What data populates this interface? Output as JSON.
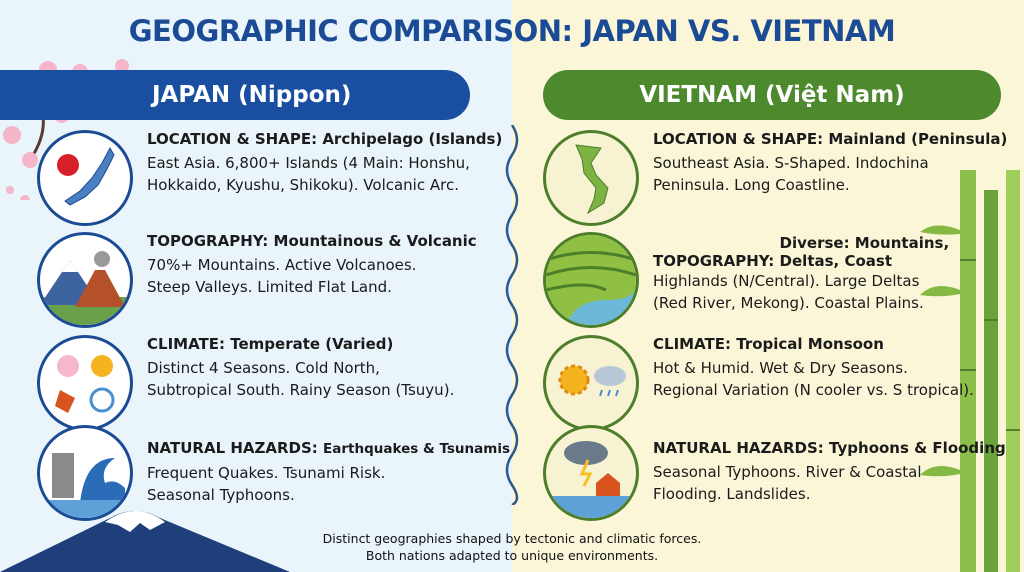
{
  "title": "GEOGRAPHIC COMPARISON: JAPAN VS. VIETNAM",
  "japan": {
    "header": "JAPAN (Nippon)",
    "color": "#1a4ea1",
    "rows": [
      {
        "key": "LOCATION & SHAPE:",
        "value": "Archipelago (Islands)",
        "body": [
          "East Asia. 6,800+ Islands (4 Main: Honshu,",
          "Hokkaido, Kyushu, Shikoku). Volcanic Arc."
        ],
        "icon": "japan-map-icon"
      },
      {
        "key": "TOPOGRAPHY:",
        "value": "Mountainous & Volcanic",
        "body": [
          "70%+ Mountains. Active Volcanoes.",
          "Steep Valleys. Limited Flat Land."
        ],
        "icon": "volcano-mountain-icon"
      },
      {
        "key": "CLIMATE:",
        "value": "Temperate (Varied)",
        "body": [
          "Distinct 4 Seasons. Cold North,",
          "Subtropical South. Rainy Season (Tsuyu)."
        ],
        "icon": "four-seasons-icon"
      },
      {
        "key": "NATURAL HAZARDS:",
        "value": "Earthquakes & Tsunamis",
        "body": [
          "Frequent Quakes. Tsunami Risk.",
          "Seasonal Typhoons."
        ],
        "icon": "earthquake-tsunami-icon"
      }
    ]
  },
  "vietnam": {
    "header": "VIETNAM (Việt Nam)",
    "color": "#4d8a2e",
    "rows": [
      {
        "key": "LOCATION & SHAPE:",
        "value": "Mainland (Peninsula)",
        "body": [
          "Southeast Asia. S-Shaped. Indochina",
          "Peninsula. Long Coastline."
        ],
        "icon": "vietnam-map-icon"
      },
      {
        "key": "TOPOGRAPHY:",
        "value": "Diverse: Mountains, Deltas, Coast",
        "body": [
          "Highlands (N/Central). Large Deltas",
          "(Red River, Mekong). Coastal Plains."
        ],
        "icon": "rice-terraces-icon"
      },
      {
        "key": "CLIMATE:",
        "value": "Tropical Monsoon",
        "body": [
          "Hot & Humid. Wet & Dry Seasons.",
          "Regional Variation (N cooler vs. S tropical)."
        ],
        "icon": "sun-rain-icon"
      },
      {
        "key": "NATURAL HAZARDS:",
        "value": "Typhoons & Flooding",
        "body": [
          "Seasonal Typhoons. River & Coastal",
          "Flooding. Landslides."
        ],
        "icon": "storm-flood-icon"
      }
    ]
  },
  "footer": [
    "Distinct geographies shaped by tectonic and climatic forces.",
    "Both nations adapted to unique environments."
  ]
}
